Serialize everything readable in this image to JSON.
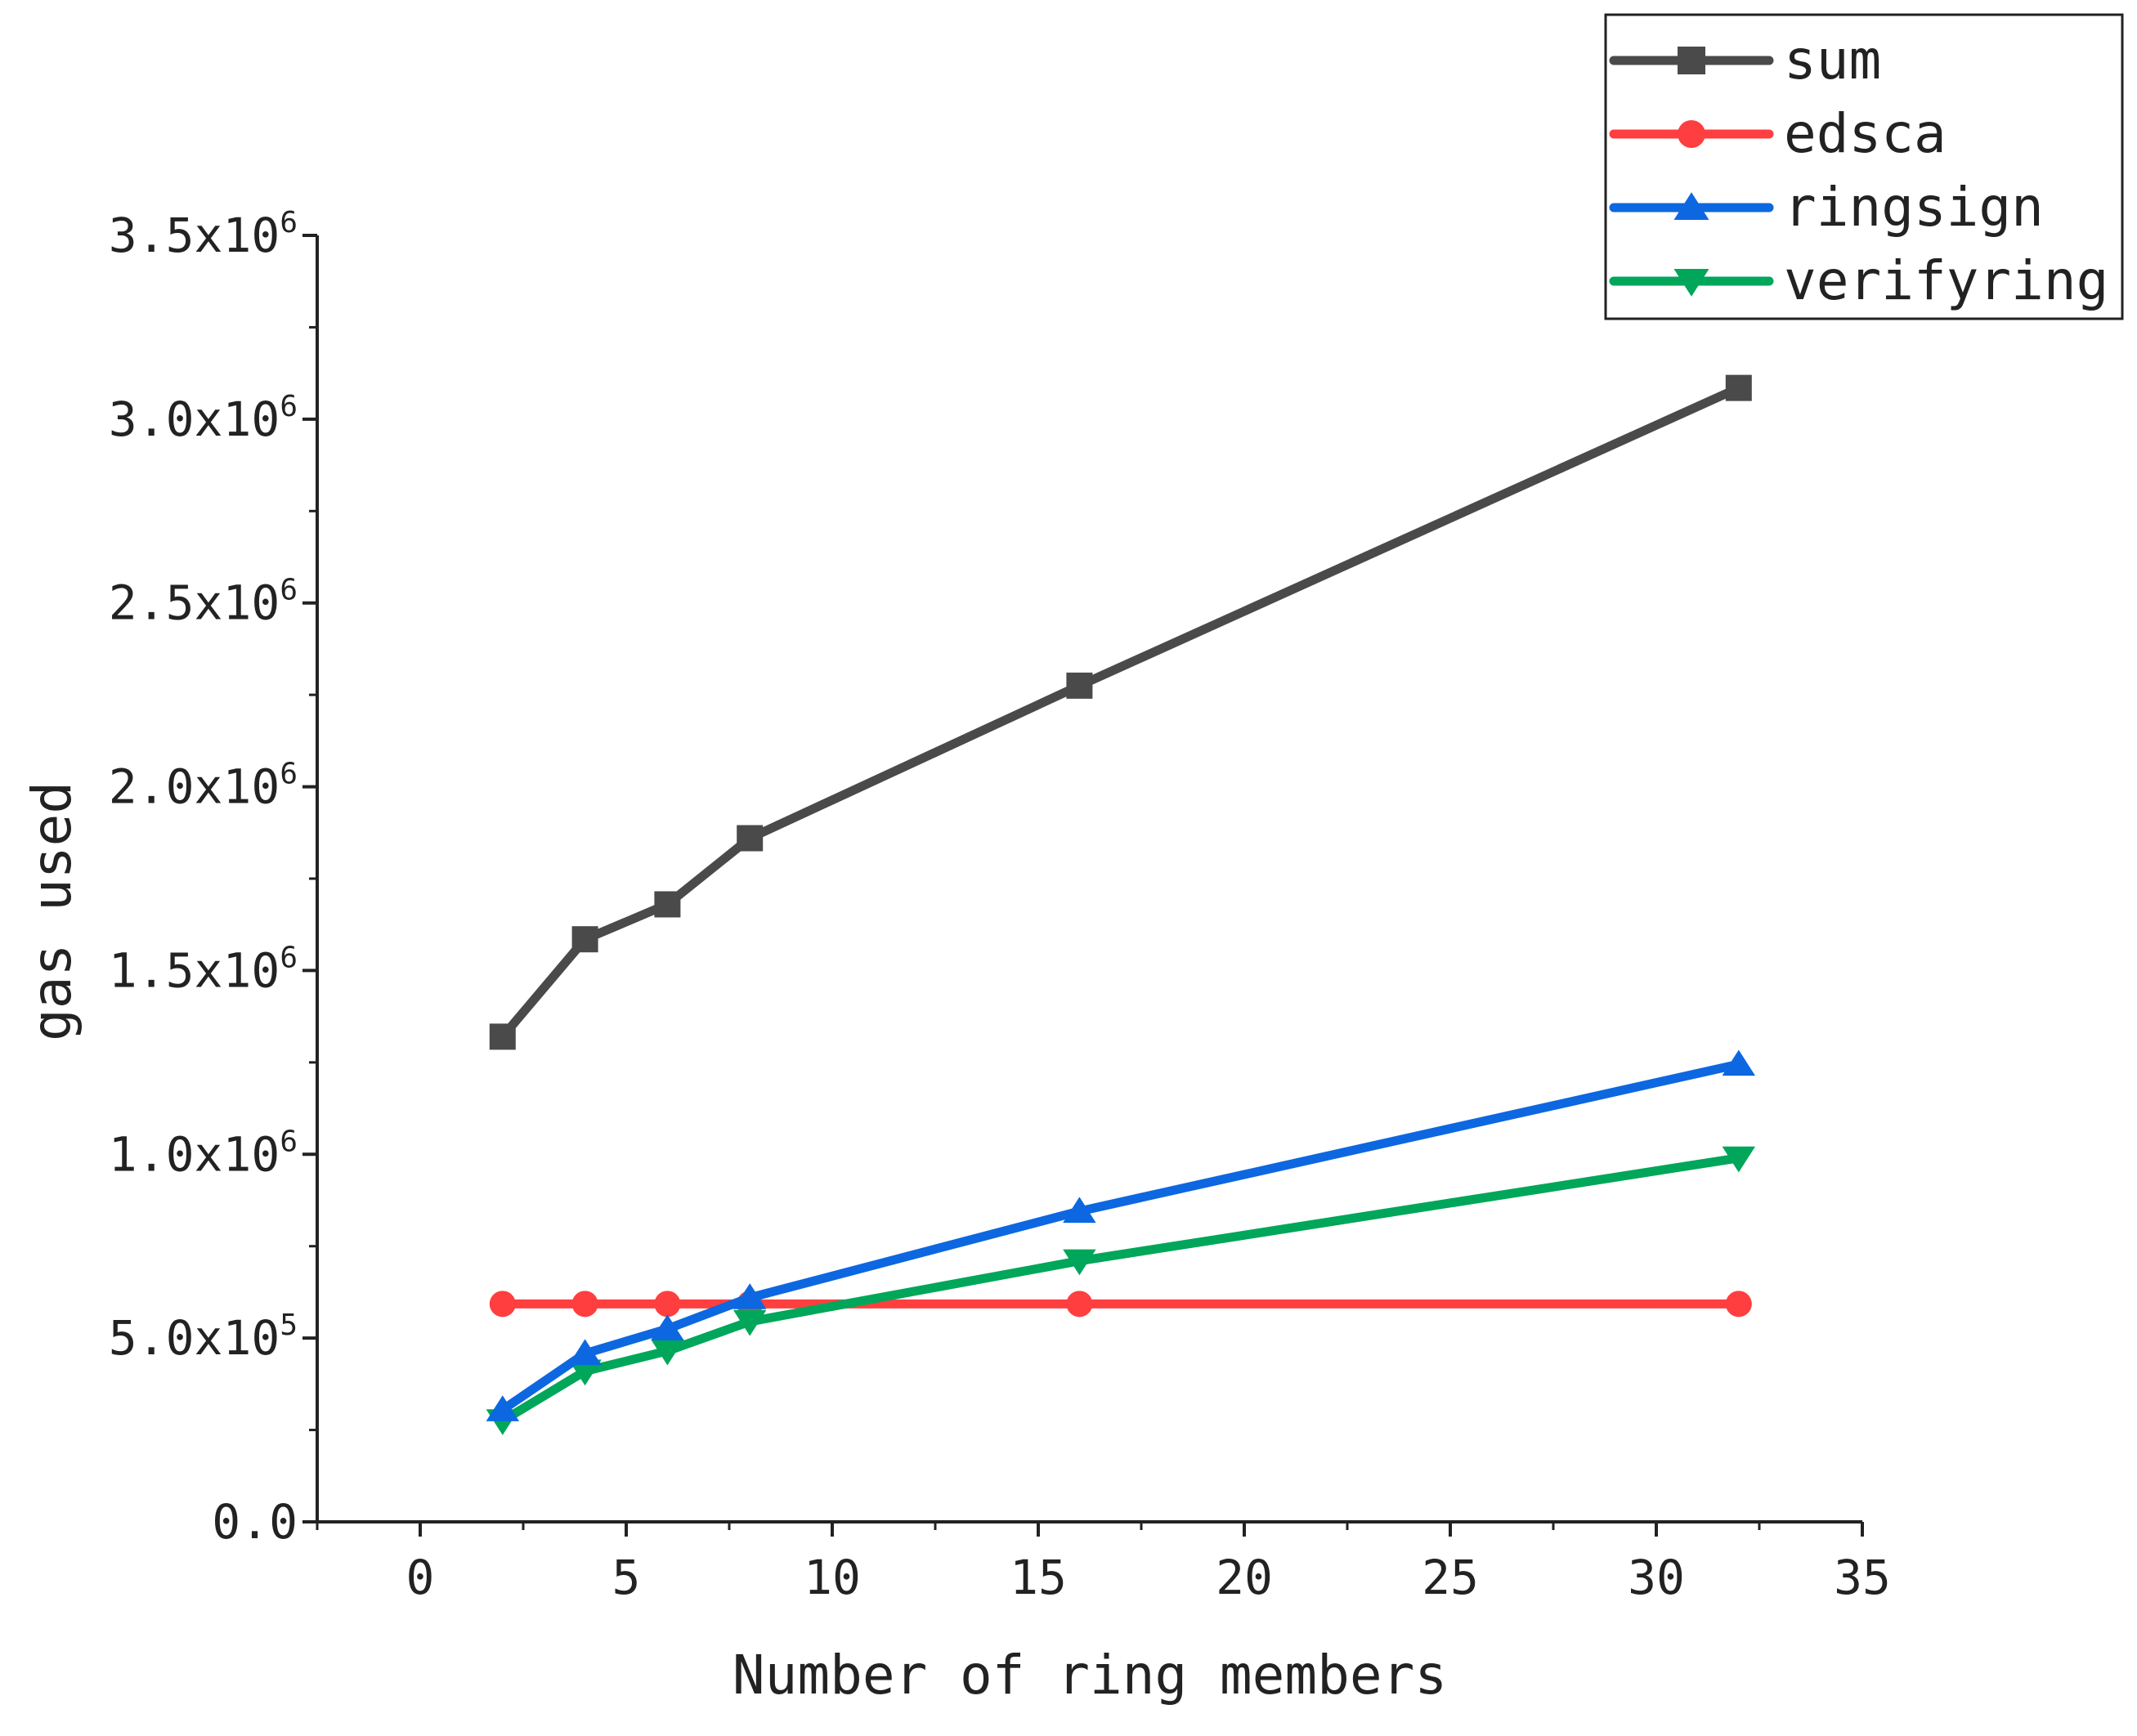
{
  "chart_data": {
    "type": "line",
    "title": "",
    "xlabel": "Number of ring members",
    "ylabel": "gas used",
    "xlim": [
      -2.5,
      35
    ],
    "ylim": [
      0,
      3500000
    ],
    "x_ticks": [
      {
        "value": 0,
        "label": "0"
      },
      {
        "value": 5,
        "label": "5"
      },
      {
        "value": 10,
        "label": "10"
      },
      {
        "value": 15,
        "label": "15"
      },
      {
        "value": 20,
        "label": "20"
      },
      {
        "value": 25,
        "label": "25"
      },
      {
        "value": 30,
        "label": "30"
      },
      {
        "value": 35,
        "label": "35"
      }
    ],
    "y_ticks": [
      {
        "value": 0,
        "mantissa": "0.0",
        "exponent": ""
      },
      {
        "value": 500000,
        "mantissa": "5.0x10",
        "exponent": "5"
      },
      {
        "value": 1000000,
        "mantissa": "1.0x10",
        "exponent": "6"
      },
      {
        "value": 1500000,
        "mantissa": "1.5x10",
        "exponent": "6"
      },
      {
        "value": 2000000,
        "mantissa": "2.0x10",
        "exponent": "6"
      },
      {
        "value": 2500000,
        "mantissa": "2.5x10",
        "exponent": "6"
      },
      {
        "value": 3000000,
        "mantissa": "3.0x10",
        "exponent": "6"
      },
      {
        "value": 3500000,
        "mantissa": "3.5x10",
        "exponent": "6"
      }
    ],
    "x": [
      2,
      4,
      6,
      8,
      16,
      32
    ],
    "series": [
      {
        "name": "sum",
        "color": "#4a4a4a",
        "marker": "square",
        "values": [
          1320000,
          1585000,
          1680000,
          1860000,
          2275000,
          3085000
        ]
      },
      {
        "name": "edsca",
        "color": "#ff3f3f",
        "marker": "circle",
        "values": [
          593000,
          593000,
          593000,
          593000,
          593000,
          593000
        ]
      },
      {
        "name": "ringsign",
        "color": "#0d67e0",
        "marker": "triangle-up",
        "values": [
          305000,
          458000,
          525000,
          610000,
          845000,
          1245000
        ]
      },
      {
        "name": "verifyring",
        "color": "#00a65a",
        "marker": "triangle-down",
        "values": [
          275000,
          410000,
          465000,
          545000,
          710000,
          990000
        ]
      }
    ],
    "legend_position": "top-right",
    "grid": false
  }
}
